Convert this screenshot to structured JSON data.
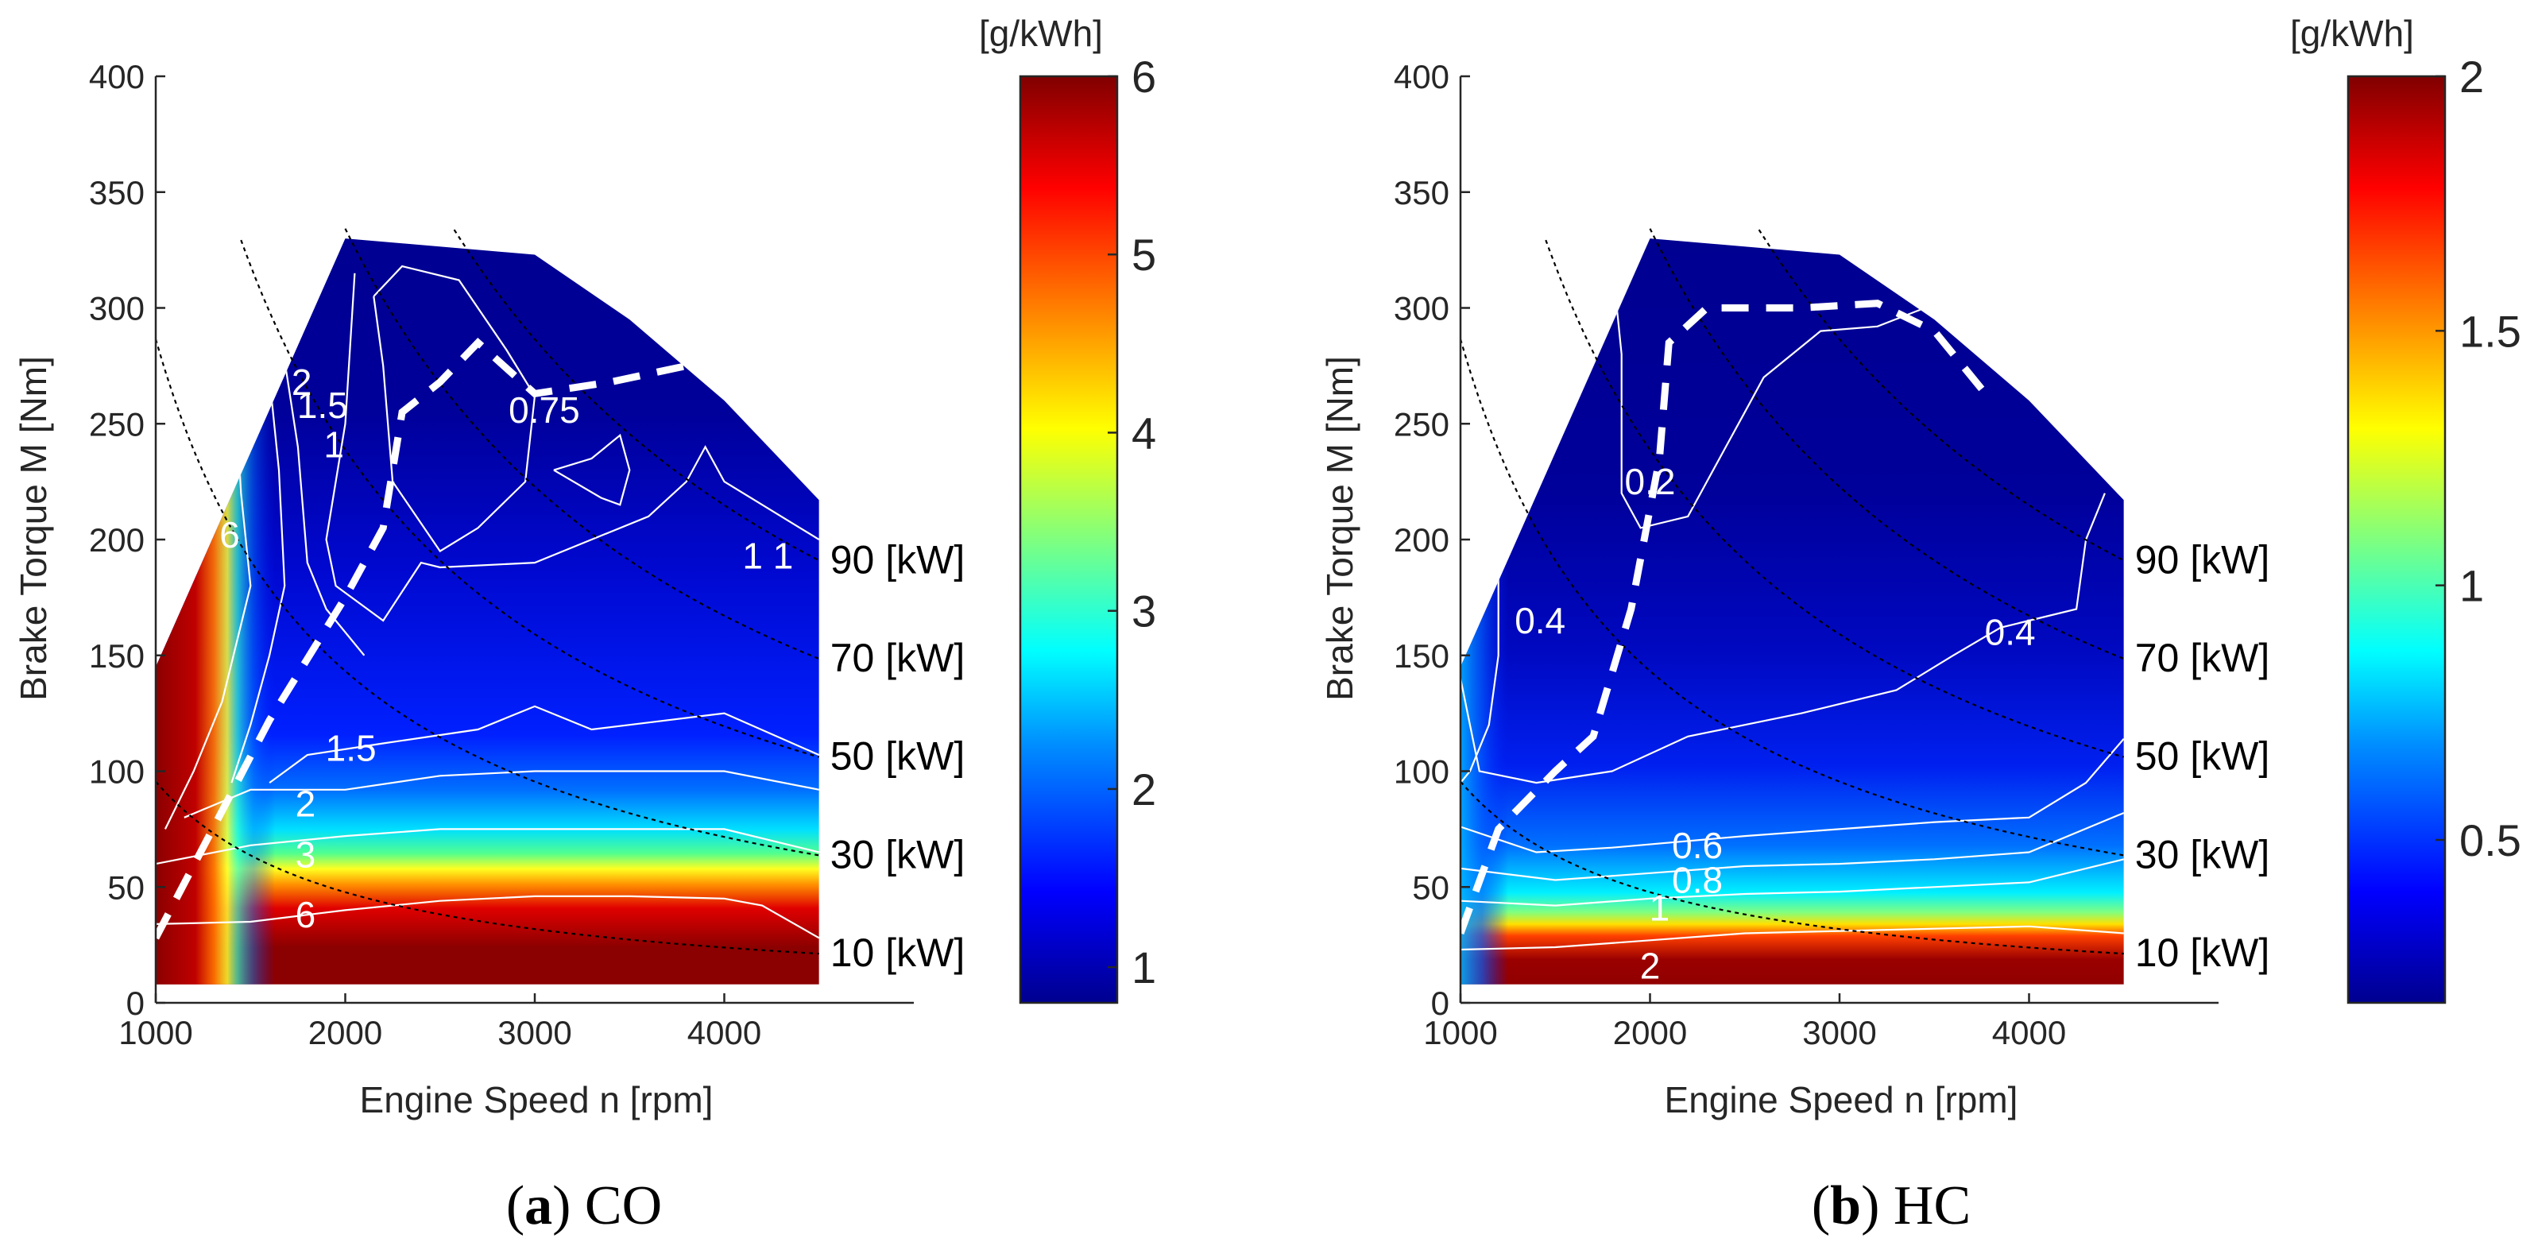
{
  "figure": {
    "panels": [
      {
        "caption_letter": "a",
        "caption_text": ") CO",
        "caption_open": "(",
        "colorbar_unit": "[g/kWh]",
        "colormap": [
          "#00008f",
          "#0000ff",
          "#00bfff",
          "#00ffff",
          "#7fff7f",
          "#ffff00",
          "#ff7f00",
          "#ff0000",
          "#800000"
        ]
      },
      {
        "caption_letter": "b",
        "caption_text": ") HC",
        "caption_open": "(",
        "colorbar_unit": "[g/kWh]",
        "colormap": [
          "#00008f",
          "#0000ff",
          "#00bfff",
          "#00ffff",
          "#7fff7f",
          "#ffff00",
          "#ff7f00",
          "#ff0000",
          "#800000"
        ]
      }
    ]
  },
  "chart_data": [
    {
      "type": "heatmap",
      "title": "(a) CO",
      "xlabel": "Engine Speed n [rpm]",
      "ylabel": "Brake Torque M [Nm]",
      "xlim": [
        1000,
        5000
      ],
      "ylim": [
        0,
        400
      ],
      "xticks": [
        1000,
        2000,
        3000,
        4000
      ],
      "yticks": [
        0,
        50,
        100,
        150,
        200,
        250,
        300,
        350,
        400
      ],
      "colorbar": {
        "label": "[g/kWh]",
        "range": [
          0.8,
          6
        ],
        "ticks": [
          1,
          2,
          3,
          4,
          5,
          6
        ]
      },
      "max_torque_curve": {
        "rpm": [
          1000,
          2000,
          3000,
          3500,
          4000,
          4500
        ],
        "torque": [
          145,
          330,
          323,
          295,
          260,
          217
        ]
      },
      "min_torque": 8,
      "contour_labels": [
        {
          "text": "0.75",
          "rpm": 3050,
          "torque": 256
        },
        {
          "text": "1",
          "rpm": 1940,
          "torque": 241
        },
        {
          "text": "1.5",
          "rpm": 1880,
          "torque": 258
        },
        {
          "text": "2",
          "rpm": 1770,
          "torque": 268
        },
        {
          "text": "1 1",
          "rpm": 4230,
          "torque": 193
        },
        {
          "text": "6",
          "rpm": 1390,
          "torque": 202
        },
        {
          "text": "1.5",
          "rpm": 2030,
          "torque": 110
        },
        {
          "text": "2",
          "rpm": 1790,
          "torque": 86
        },
        {
          "text": "3",
          "rpm": 1790,
          "torque": 64
        },
        {
          "text": "6",
          "rpm": 1790,
          "torque": 38
        }
      ],
      "power_lines_kw": [
        10,
        30,
        50,
        70,
        90
      ],
      "power_labels": [
        "10 [kW]",
        "30 [kW]",
        "50 [kW]",
        "70 [kW]",
        "90 [kW]"
      ],
      "dashed_curve": {
        "rpm": [
          1000,
          1300,
          1600,
          2000,
          2200,
          2300,
          2500,
          2700,
          3000,
          3400,
          3800
        ],
        "torque": [
          28,
          75,
          122,
          175,
          205,
          255,
          268,
          285,
          263,
          268,
          275
        ]
      }
    },
    {
      "type": "heatmap",
      "title": "(b) HC",
      "xlabel": "Engine Speed n [rpm]",
      "ylabel": "Brake Torque M [Nm]",
      "xlim": [
        1000,
        5000
      ],
      "ylim": [
        0,
        400
      ],
      "xticks": [
        1000,
        2000,
        3000,
        4000
      ],
      "yticks": [
        0,
        50,
        100,
        150,
        200,
        250,
        300,
        350,
        400
      ],
      "colorbar": {
        "label": "[g/kWh]",
        "range": [
          0.18,
          2
        ],
        "ticks": [
          0.5,
          1,
          1.5,
          2
        ]
      },
      "max_torque_curve": {
        "rpm": [
          1000,
          2000,
          3000,
          3500,
          4000,
          4500
        ],
        "torque": [
          145,
          330,
          323,
          295,
          260,
          217
        ]
      },
      "min_torque": 8,
      "contour_labels": [
        {
          "text": "0.2",
          "rpm": 2000,
          "torque": 225
        },
        {
          "text": "0.4",
          "rpm": 1420,
          "torque": 165
        },
        {
          "text": "0.4",
          "rpm": 3900,
          "torque": 160
        },
        {
          "text": "0.6",
          "rpm": 2250,
          "torque": 68
        },
        {
          "text": "0.8",
          "rpm": 2250,
          "torque": 53
        },
        {
          "text": "1",
          "rpm": 2050,
          "torque": 41
        },
        {
          "text": "2",
          "rpm": 2000,
          "torque": 16
        }
      ],
      "power_lines_kw": [
        10,
        30,
        50,
        70,
        90
      ],
      "power_labels": [
        "10 [kW]",
        "30 [kW]",
        "50 [kW]",
        "70 [kW]",
        "90 [kW]"
      ],
      "dashed_curve": {
        "rpm": [
          1000,
          1200,
          1500,
          1700,
          1900,
          2050,
          2100,
          2300,
          2800,
          3200,
          3500,
          3750
        ],
        "torque": [
          30,
          75,
          100,
          115,
          170,
          235,
          285,
          300,
          300,
          302,
          290,
          265
        ]
      }
    }
  ]
}
